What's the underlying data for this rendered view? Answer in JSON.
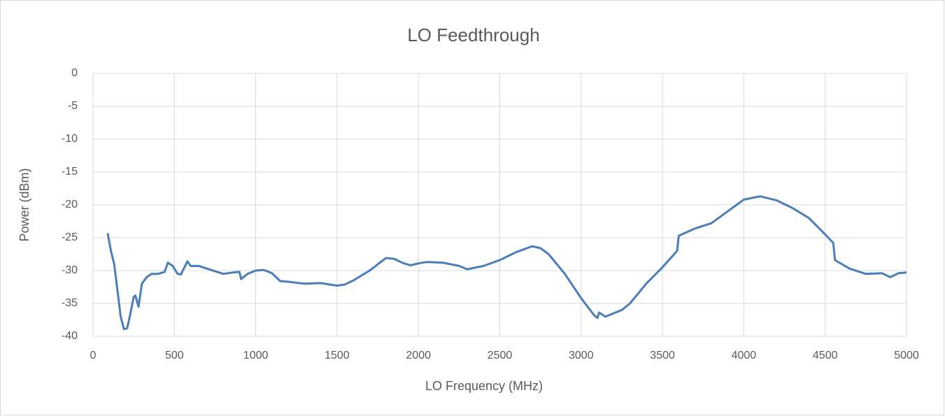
{
  "chart_data": {
    "type": "line",
    "title": "LO Feedthrough",
    "x_label": "LO Frequency (MHz)",
    "y_label": "Power (dBm)",
    "x": [
      90,
      110,
      130,
      150,
      170,
      190,
      210,
      230,
      250,
      260,
      280,
      300,
      330,
      360,
      400,
      440,
      460,
      490,
      520,
      540,
      580,
      600,
      650,
      700,
      800,
      860,
      900,
      910,
      950,
      1000,
      1050,
      1100,
      1150,
      1200,
      1300,
      1400,
      1500,
      1550,
      1600,
      1700,
      1800,
      1850,
      1900,
      1950,
      2000,
      2050,
      2150,
      2250,
      2300,
      2400,
      2500,
      2600,
      2700,
      2750,
      2800,
      2900,
      3000,
      3080,
      3100,
      3110,
      3150,
      3250,
      3300,
      3400,
      3500,
      3590,
      3600,
      3700,
      3800,
      3900,
      4000,
      4100,
      4200,
      4300,
      4400,
      4500,
      4550,
      4560,
      4650,
      4750,
      4850,
      4900,
      4950,
      5000
    ],
    "values": [
      -24.3,
      -27,
      -29,
      -33,
      -37,
      -38.9,
      -38.8,
      -36.5,
      -34,
      -33.8,
      -35.5,
      -32,
      -31,
      -30.5,
      -30.5,
      -30.2,
      -28.8,
      -29.3,
      -30.5,
      -30.6,
      -28.6,
      -29.3,
      -29.3,
      -29.7,
      -30.5,
      -30.3,
      -30.2,
      -31.3,
      -30.5,
      -30,
      -29.9,
      -30.4,
      -31.6,
      -31.7,
      -32,
      -31.9,
      -32.3,
      -32.1,
      -31.5,
      -30,
      -28.1,
      -28.2,
      -28.8,
      -29.2,
      -28.9,
      -28.7,
      -28.8,
      -29.3,
      -29.8,
      -29.3,
      -28.4,
      -27.2,
      -26.3,
      -26.6,
      -27.5,
      -30.5,
      -34.2,
      -36.8,
      -37.2,
      -36.4,
      -37,
      -36,
      -35,
      -32,
      -29.5,
      -27,
      -24.7,
      -23.6,
      -22.8,
      -21,
      -19.2,
      -18.7,
      -19.3,
      -20.5,
      -22,
      -24.5,
      -25.8,
      -28.4,
      -29.7,
      -30.5,
      -30.4,
      -31,
      -30.4,
      -30.3
    ],
    "color": "#4a7ebb",
    "xlim": [
      0,
      5000
    ],
    "xticks": [
      0,
      500,
      1000,
      1500,
      2000,
      2500,
      3000,
      3500,
      4000,
      4500,
      5000
    ],
    "ylim": [
      -40,
      0
    ],
    "yticks": [
      0,
      -5,
      -10,
      -15,
      -20,
      -25,
      -30,
      -35,
      -40
    ],
    "grid": true
  }
}
